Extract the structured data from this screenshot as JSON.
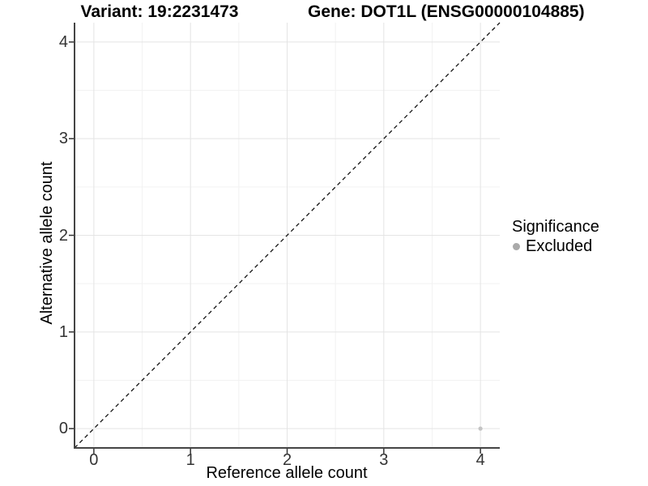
{
  "figure": {
    "title_left": "Variant: 19:2231473",
    "title_right": "Gene: DOT1L (ENSG00000104885)"
  },
  "chart_data": {
    "type": "scatter",
    "title": "Variant: 19:2231473    Gene: DOT1L (ENSG00000104885)",
    "xlabel": "Reference allele count",
    "ylabel": "Alternative allele count",
    "xlim": [
      -0.2,
      4.2
    ],
    "ylim": [
      -0.2,
      4.2
    ],
    "x_ticks": [
      0,
      1,
      2,
      3,
      4
    ],
    "y_ticks": [
      0,
      1,
      2,
      3,
      4
    ],
    "minor_gridlines": [
      0.5,
      1.5,
      2.5,
      3.5
    ],
    "grid": "major+minor",
    "identity_line": {
      "style": "dashed",
      "x1": -0.2,
      "y1": -0.2,
      "x2": 4.2,
      "y2": 4.2,
      "color": "#111111"
    },
    "series": [
      {
        "name": "Excluded",
        "color": "#c4c4c4",
        "point_radius": 2.6,
        "points": [
          {
            "x": 4,
            "y": 0
          }
        ]
      }
    ],
    "legend": {
      "title": "Significance",
      "position": "right",
      "entries": [
        {
          "label": "Excluded",
          "swatch_color": "#aaaaaa"
        }
      ]
    },
    "colors": {
      "grid_major": "#e4e4e4",
      "grid_minor": "#f2f2f2",
      "axis_line": "#454545",
      "tick_mark": "#333333",
      "tick_label": "#333333"
    }
  }
}
